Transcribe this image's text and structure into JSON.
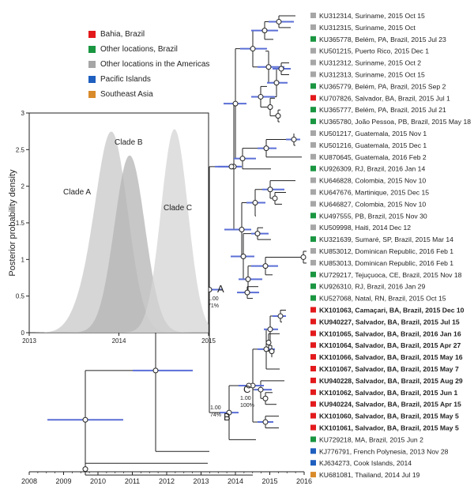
{
  "legend": [
    {
      "label": "Bahia, Brazil",
      "color": "#e31a1c"
    },
    {
      "label": "Other locations, Brazil",
      "color": "#1a9641"
    },
    {
      "label": "Other locations in the Americas",
      "color": "#a6a6a6"
    },
    {
      "label": "Pacific Islands",
      "color": "#1f5fbf"
    },
    {
      "label": "Southeast Asia",
      "color": "#d98b2b"
    }
  ],
  "tree": {
    "x_ticks": [
      "2008",
      "2009",
      "2010",
      "2011",
      "2012",
      "2013",
      "2014",
      "2015",
      "2016"
    ],
    "leaves": [
      {
        "label": "KU312314, Suriname, 2015 Oct 15",
        "region": "americas",
        "bold": false
      },
      {
        "label": "KU312315, Suriname, 2015 Oct",
        "region": "americas",
        "bold": false
      },
      {
        "label": "KU365778, Belém, PA, Brazil, 2015 Jul 23",
        "region": "brazil",
        "bold": false
      },
      {
        "label": "KU501215, Puerto Rico, 2015 Dec 1",
        "region": "americas",
        "bold": false
      },
      {
        "label": "KU312312, Suriname, 2015 Oct 2",
        "region": "americas",
        "bold": false
      },
      {
        "label": "KU312313, Suriname, 2015 Oct 15",
        "region": "americas",
        "bold": false
      },
      {
        "label": "KU365779, Belém, PA, Brazil, 2015 Sep 2",
        "region": "brazil",
        "bold": false
      },
      {
        "label": "KU707826, Salvador, BA, Brazil, 2015 Jul 1",
        "region": "bahia",
        "bold": false
      },
      {
        "label": "KU365777, Belém, PA, Brazil, 2015 Jul 21",
        "region": "brazil",
        "bold": false
      },
      {
        "label": "KU365780, João Pessoa, PB, Brazil, 2015 May 18",
        "region": "brazil",
        "bold": false
      },
      {
        "label": "KU501217, Guatemala, 2015 Nov 1",
        "region": "americas",
        "bold": false
      },
      {
        "label": "KU501216, Guatemala, 2015 Dec 1",
        "region": "americas",
        "bold": false
      },
      {
        "label": "KU870645, Guatemala, 2016 Feb 2",
        "region": "americas",
        "bold": false
      },
      {
        "label": "KU926309, RJ, Brazil, 2016 Jan 14",
        "region": "brazil",
        "bold": false
      },
      {
        "label": "KU646828, Colombia, 2015 Nov 10",
        "region": "americas",
        "bold": false
      },
      {
        "label": "KU647676, Martinique, 2015 Dec 15",
        "region": "americas",
        "bold": false
      },
      {
        "label": "KU646827, Colombia, 2015 Nov 10",
        "region": "americas",
        "bold": false
      },
      {
        "label": "KU497555, PB, Brazil, 2015 Nov 30",
        "region": "brazil",
        "bold": false
      },
      {
        "label": "KU509998, Haiti, 2014 Dec 12",
        "region": "americas",
        "bold": false
      },
      {
        "label": "KU321639, Sumaré, SP, Brazil, 2015 Mar 14",
        "region": "brazil",
        "bold": false
      },
      {
        "label": "KU853012, Dominican Republic, 2016 Feb 1",
        "region": "americas",
        "bold": false
      },
      {
        "label": "KU853013, Dominican Republic, 2016 Feb 1",
        "region": "americas",
        "bold": false
      },
      {
        "label": "KU729217, Tejuçuoca, CE, Brazil, 2015 Nov 18",
        "region": "brazil",
        "bold": false
      },
      {
        "label": "KU926310, RJ, Brazil, 2016 Jan 29",
        "region": "brazil",
        "bold": false
      },
      {
        "label": "KU527068, Natal, RN, Brazil, 2015 Oct 15",
        "region": "brazil",
        "bold": false
      },
      {
        "label": "KX101063, Camaçari, BA, Brazil, 2015 Dec 10",
        "region": "bahia",
        "bold": true
      },
      {
        "label": "KU940227, Salvador, BA, Brazil, 2015 Jul 15",
        "region": "bahia",
        "bold": true
      },
      {
        "label": "KX101065, Salvador, BA, Brazil, 2016 Jan 16",
        "region": "bahia",
        "bold": true
      },
      {
        "label": "KX101064, Salvador, BA, Brazil, 2015 Apr 27",
        "region": "bahia",
        "bold": true
      },
      {
        "label": "KX101066, Salvador, BA, Brazil, 2015 May 16",
        "region": "bahia",
        "bold": true
      },
      {
        "label": "KX101067, Salvador, BA, Brazil, 2015 May 7",
        "region": "bahia",
        "bold": true
      },
      {
        "label": "KU940228, Salvador, BA, Brazil, 2015 Aug 29",
        "region": "bahia",
        "bold": true
      },
      {
        "label": "KX101062, Salvador, BA, Brazil, 2015 Jun 1",
        "region": "bahia",
        "bold": true
      },
      {
        "label": "KU940224, Salvador, BA, Brazil, 2015 Apr 15",
        "region": "bahia",
        "bold": true
      },
      {
        "label": "KX101060, Salvador, BA, Brazil, 2015 May 5",
        "region": "bahia",
        "bold": true
      },
      {
        "label": "KX101061, Salvador, BA, Brazil, 2015 May 5",
        "region": "bahia",
        "bold": true
      },
      {
        "label": "KU729218, MA, Brazil, 2015 Jun 2",
        "region": "brazil",
        "bold": false
      },
      {
        "label": "KJ776791, French Polynesia, 2013 Nov 28",
        "region": "pacific",
        "bold": false
      },
      {
        "label": "KJ634273, Cook Islands, 2014",
        "region": "pacific",
        "bold": false
      },
      {
        "label": "KU681081, Thailand, 2014 Jul 19",
        "region": "seasia",
        "bold": false
      }
    ],
    "clade_labels": [
      {
        "text": "A",
        "support_top": "1.00",
        "support_bottom": "71%"
      },
      {
        "text": "B",
        "support_top": "1.00",
        "support_bottom": "74%"
      },
      {
        "text": "C",
        "support_top": "1.00",
        "support_bottom": "100%"
      }
    ]
  },
  "density_chart": {
    "ylabel": "Posterior probability density",
    "y_ticks": [
      "0",
      "0.5",
      "1",
      "1.5",
      "2",
      "2.5",
      "3"
    ],
    "x_ticks": [
      "2013",
      "2014",
      "2015"
    ],
    "curves": [
      {
        "label": "Clade A",
        "color": "#c8c8c8"
      },
      {
        "label": "Clade B",
        "color": "#b4b4b4"
      },
      {
        "label": "Clade C",
        "color": "#d4d4d4"
      }
    ]
  },
  "region_colors": {
    "bahia": "#e31a1c",
    "brazil": "#1a9641",
    "americas": "#a6a6a6",
    "pacific": "#1f5fbf",
    "seasia": "#d98b2b"
  }
}
